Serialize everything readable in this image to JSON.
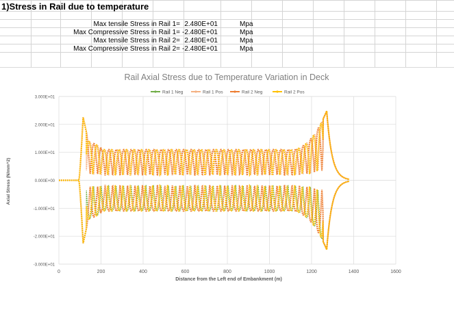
{
  "sheet": {
    "heading": "1)Stress in Rail due to temperature",
    "rows": [
      {
        "label": "Max tensile Stress in Rail 1=",
        "value": "2.480E+01",
        "unit": "Mpa"
      },
      {
        "label": "Max Compressive Stress in Rail 1=",
        "value": "-2.480E+01",
        "unit": "Mpa"
      },
      {
        "label": "Max tensile Stress in Rail 2=",
        "value": "2.480E+01",
        "unit": "Mpa"
      },
      {
        "label": "Max Compressive Stress in Rail 2=",
        "value": "-2.480E+01",
        "unit": "Mpa"
      }
    ]
  },
  "chart_data": {
    "type": "line",
    "title": "Rail Axial Stress due to Temperature Variation in Deck",
    "xlabel": "Distance from the Left end of Embankment (m)",
    "ylabel": "Axial Stress (N/mm^2)",
    "xlim": [
      0,
      1600
    ],
    "ylim": [
      -30,
      30
    ],
    "x_ticks": [
      "0",
      "200",
      "400",
      "600",
      "800",
      "1000",
      "1200",
      "1400",
      "1600"
    ],
    "y_ticks": [
      "3.000E+01",
      "2.000E+01",
      "1.000E+01",
      "0.000E+00",
      "-1.000E+01",
      "-2.000E+01",
      "-3.000E+01"
    ],
    "grid": true,
    "legend": "top",
    "series": [
      {
        "name": "Rail 1 Neg",
        "color": "#70ad47",
        "max_abs": 24.8
      },
      {
        "name": "Rail 1 Pos",
        "color": "#f4b183",
        "max_abs": 24.8
      },
      {
        "name": "Rail 2 Neg",
        "color": "#ed7d31",
        "max_abs": 24.8
      },
      {
        "name": "Rail 2 Pos",
        "color": "#ffc000",
        "max_abs": 24.8
      }
    ],
    "approx_profile": {
      "zero_until": 95,
      "left_peak_x": 115,
      "left_peak": 22.6,
      "right_peak_x": 1272,
      "right_peak": 24.8,
      "zero_after": 1380,
      "middle_amplitude": 11
    }
  }
}
